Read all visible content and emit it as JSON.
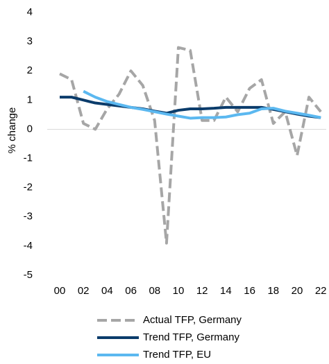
{
  "chart_data": {
    "type": "line",
    "ylabel": "% change",
    "categories": [
      "00",
      null,
      "02",
      null,
      "04",
      null,
      "06",
      null,
      "08",
      null,
      "10",
      null,
      "12",
      null,
      "14",
      null,
      "16",
      null,
      "18",
      null,
      "20",
      null,
      "22"
    ],
    "ylim": [
      -5,
      4
    ],
    "yticks": [
      -5,
      -4,
      -3,
      -2,
      -1,
      0,
      1,
      2,
      3,
      4
    ],
    "grid": false,
    "legend": "bottom",
    "series": [
      {
        "name": "Actual TFP, Germany",
        "color": "#a6a6a6",
        "dash": true,
        "values": [
          1.9,
          1.7,
          0.2,
          0.0,
          0.7,
          1.2,
          2.0,
          1.5,
          0.3,
          -3.9,
          2.8,
          2.7,
          0.3,
          0.3,
          1.1,
          0.6,
          1.4,
          1.7,
          0.2,
          0.6,
          -0.9,
          1.1,
          0.6
        ]
      },
      {
        "name": "Trend TFP, Germany",
        "color": "#0b3c6b",
        "dash": false,
        "values": [
          1.1,
          1.1,
          1.0,
          0.9,
          0.85,
          0.8,
          0.75,
          0.7,
          0.62,
          0.55,
          0.65,
          0.7,
          0.7,
          0.72,
          0.75,
          0.75,
          0.75,
          0.75,
          0.68,
          0.6,
          0.52,
          0.45,
          0.4
        ]
      },
      {
        "name": "Trend TFP, EU",
        "color": "#5bb8f0",
        "dash": false,
        "values": [
          null,
          null,
          1.3,
          1.1,
          0.95,
          0.85,
          0.75,
          0.68,
          0.6,
          0.52,
          0.45,
          0.38,
          0.4,
          0.4,
          0.42,
          0.5,
          0.55,
          0.7,
          0.72,
          0.62,
          0.55,
          0.48,
          0.4
        ]
      }
    ]
  }
}
